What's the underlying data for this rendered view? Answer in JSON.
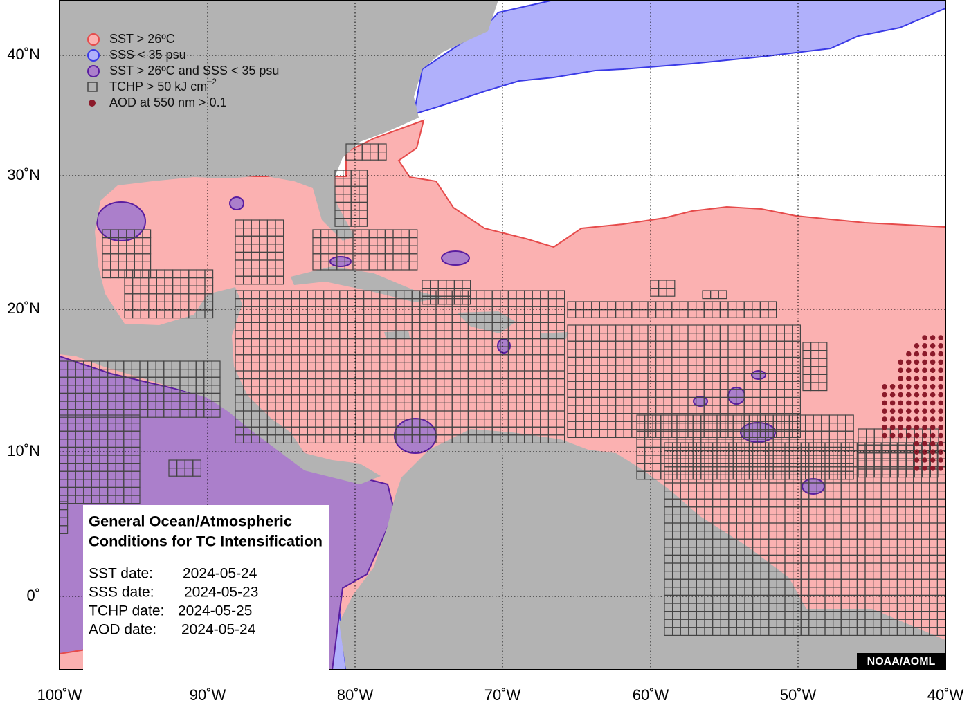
{
  "map": {
    "lat_labels": [
      "40˚N",
      "30˚N",
      "20˚N",
      "10˚N",
      "0˚"
    ],
    "lon_labels": [
      "100˚W",
      "90˚W",
      "80˚W",
      "70˚W",
      "60˚W",
      "50˚W",
      "40˚W"
    ]
  },
  "legend": {
    "items": [
      {
        "label": "SST > 26ºC"
      },
      {
        "label": "SSS < 35 psu"
      },
      {
        "label": "SST > 26ºC and SSS < 35 psu"
      },
      {
        "label": "TCHP > 50 kJ cm",
        "exponent": "−2"
      },
      {
        "label": "AOD at 550 nm > 0.1"
      }
    ]
  },
  "info_box": {
    "title_lines": [
      "General Ocean/Atmospheric",
      "Conditions for TC Intensification"
    ],
    "dates": [
      {
        "label": "SST date:",
        "value": "2024-05-24"
      },
      {
        "label": "SSS date:",
        "value": "2024-05-23"
      },
      {
        "label": "TCHP date:",
        "value": "2024-05-25"
      },
      {
        "label": "AOD date:",
        "value": "2024-05-24"
      }
    ]
  },
  "credit": "NOAA/AOML"
}
